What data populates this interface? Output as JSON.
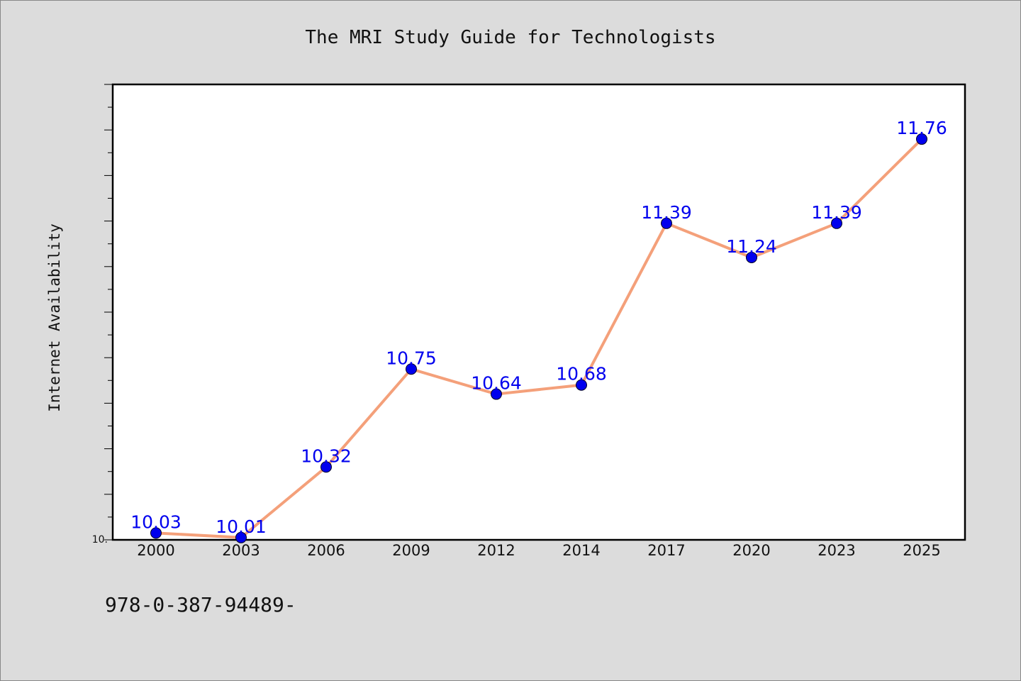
{
  "footer": {
    "isbn": "978-0-387-94489-"
  },
  "colors": {
    "line": "#f4a07a",
    "marker": "#0000ee",
    "label": "#0000ee",
    "background": "#dcdcdc",
    "plot": "#ffffff"
  },
  "chart_data": {
    "type": "line",
    "title": "The MRI Study Guide for Technologists",
    "xlabel": "",
    "ylabel": "Internet Availability",
    "categories": [
      "2000",
      "2003",
      "2006",
      "2009",
      "2012",
      "2014",
      "2017",
      "2020",
      "2023",
      "2025"
    ],
    "values": [
      10.03,
      10.01,
      10.32,
      10.75,
      10.64,
      10.68,
      11.39,
      11.24,
      11.39,
      11.76
    ],
    "data_labels": [
      "10.03",
      "10.01",
      "10.32",
      "10.75",
      "10.64",
      "10.68",
      "11.39",
      "11.24",
      "11.39",
      "11.76"
    ],
    "ytick_label": "10.",
    "ylim": [
      10.0,
      12.0
    ],
    "grid": false,
    "legend": "none"
  }
}
